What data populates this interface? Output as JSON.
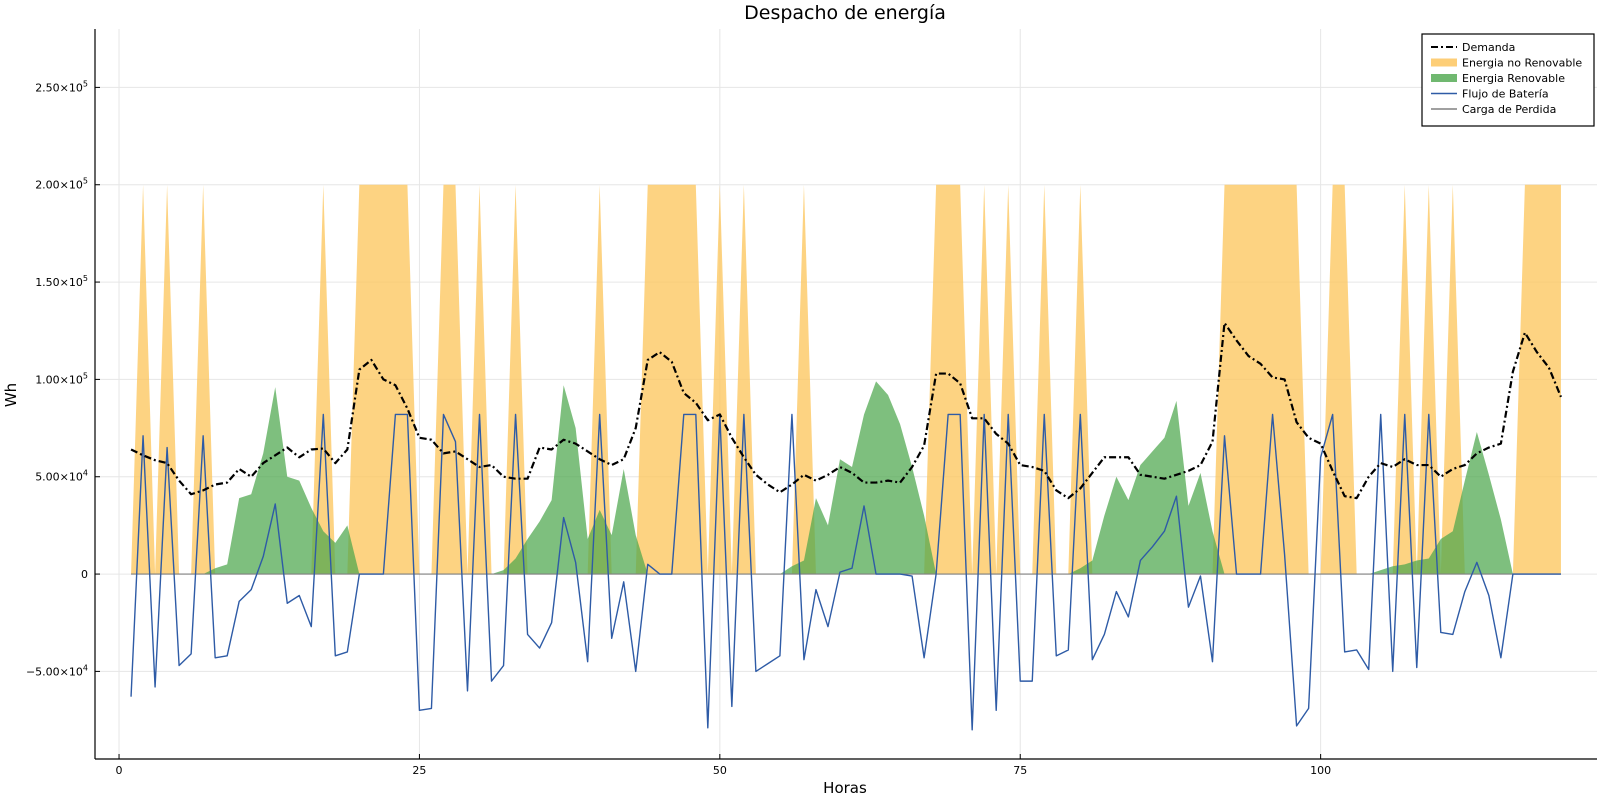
{
  "chart_data": {
    "type": "area",
    "title": "Despacho de energía",
    "xlabel": "Horas",
    "ylabel": "Wh",
    "xlim": [
      -2,
      123
    ],
    "ylim": [
      -95000,
      280000
    ],
    "x_ticks": [
      0,
      25,
      50,
      75,
      100
    ],
    "x_tick_labels": [
      "0",
      "25",
      "50",
      "75",
      "100"
    ],
    "y_ticks": [
      -50000,
      0,
      50000,
      100000,
      150000,
      200000,
      250000
    ],
    "y_tick_labels": [
      {
        "mant": "−5.00×10",
        "exp": "4"
      },
      {
        "mant": "0",
        "exp": ""
      },
      {
        "mant": "5.00×10",
        "exp": "4"
      },
      {
        "mant": "1.00×10",
        "exp": "5"
      },
      {
        "mant": "1.50×10",
        "exp": "5"
      },
      {
        "mant": "2.00×10",
        "exp": "5"
      },
      {
        "mant": "2.50×10",
        "exp": "5"
      }
    ],
    "grid": true,
    "legend_position": "top-right",
    "colors": {
      "demanda": "#000000",
      "no_renovable": "#FDC65F",
      "renovable": "#4CA64C",
      "bateria": "#2E5BA6",
      "perdida": "#808080",
      "overlap": "#7F8E1C"
    },
    "legend": [
      "Demanda",
      "Energia no Renovable",
      "Energia Renovable",
      "Flujo de Batería",
      "Carga de Perdida"
    ],
    "x": [
      1,
      2,
      3,
      4,
      5,
      6,
      7,
      8,
      9,
      10,
      11,
      12,
      13,
      14,
      15,
      16,
      17,
      18,
      19,
      20,
      21,
      22,
      23,
      24,
      25,
      26,
      27,
      28,
      29,
      30,
      31,
      32,
      33,
      34,
      35,
      36,
      37,
      38,
      39,
      40,
      41,
      42,
      43,
      44,
      45,
      46,
      47,
      48,
      49,
      50,
      51,
      52,
      53,
      54,
      55,
      56,
      57,
      58,
      59,
      60,
      61,
      62,
      63,
      64,
      65,
      66,
      67,
      68,
      69,
      70,
      71,
      72,
      73,
      74,
      75,
      76,
      77,
      78,
      79,
      80,
      81,
      82,
      83,
      84,
      85,
      86,
      87,
      88,
      89,
      90,
      91,
      92,
      93,
      94,
      95,
      96,
      97,
      98,
      99,
      100,
      101,
      102,
      103,
      104,
      105,
      106,
      107,
      108,
      109,
      110,
      111,
      112,
      113,
      114,
      115,
      116,
      117,
      118,
      119,
      120
    ],
    "series": [
      {
        "name": "Demanda",
        "values": [
          64000,
          61000,
          58500,
          57000,
          48000,
          41000,
          43000,
          46000,
          47000,
          54000,
          50000,
          57000,
          61000,
          65000,
          60000,
          64000,
          64500,
          57000,
          64000,
          105000,
          110000,
          100000,
          97000,
          85000,
          70000,
          69000,
          62000,
          63000,
          59000,
          55000,
          56000,
          50000,
          49000,
          49000,
          65000,
          64000,
          69000,
          67000,
          63000,
          59000,
          56000,
          59000,
          75000,
          110000,
          114000,
          109000,
          93000,
          88000,
          79000,
          82000,
          70000,
          60000,
          51000,
          46000,
          42000,
          46000,
          51000,
          48000,
          51000,
          55000,
          52000,
          47000,
          47000,
          48000,
          47000,
          55000,
          66000,
          103000,
          103000,
          98000,
          80000,
          80000,
          72000,
          67000,
          56000,
          55000,
          53000,
          43000,
          39000,
          44000,
          52000,
          60000,
          60000,
          60000,
          51000,
          50000,
          49000,
          51000,
          53000,
          56000,
          68000,
          129000,
          120000,
          112000,
          108000,
          101000,
          100000,
          78000,
          70000,
          67000,
          53000,
          40000,
          39000,
          50000,
          57000,
          55000,
          59000,
          56000,
          56000,
          50000,
          54000,
          56000,
          62000,
          65000,
          67000,
          104000,
          124000,
          114000,
          106000,
          91000
        ]
      },
      {
        "name": "Energia no Renovable",
        "values": [
          0,
          200000,
          0,
          200000,
          0,
          0,
          200000,
          0,
          0,
          0,
          0,
          0,
          0,
          0,
          0,
          0,
          200000,
          0,
          0,
          200000,
          200000,
          200000,
          200000,
          200000,
          0,
          0,
          200000,
          200000,
          0,
          200000,
          0,
          0,
          200000,
          0,
          0,
          0,
          0,
          0,
          0,
          200000,
          0,
          0,
          0,
          200000,
          200000,
          200000,
          200000,
          200000,
          0,
          200000,
          0,
          200000,
          0,
          0,
          0,
          0,
          200000,
          0,
          0,
          0,
          0,
          0,
          0,
          0,
          0,
          0,
          0,
          200000,
          200000,
          200000,
          0,
          200000,
          0,
          200000,
          0,
          0,
          200000,
          0,
          0,
          200000,
          0,
          0,
          0,
          0,
          0,
          0,
          0,
          0,
          0,
          0,
          0,
          200000,
          200000,
          200000,
          200000,
          200000,
          200000,
          200000,
          0,
          0,
          200000,
          200000,
          0,
          0,
          0,
          0,
          200000,
          0,
          200000,
          0,
          200000,
          0,
          0,
          0,
          0,
          0,
          200000,
          200000,
          200000,
          200000
        ]
      },
      {
        "name": "Energia Renovable",
        "values": [
          0,
          0,
          0,
          0,
          0,
          0,
          0,
          3000,
          5000,
          39000,
          41000,
          62000,
          96000,
          50000,
          48000,
          34000,
          22000,
          16000,
          25000,
          0,
          0,
          0,
          0,
          0,
          0,
          0,
          0,
          0,
          0,
          0,
          0,
          2000,
          8000,
          18000,
          27000,
          38000,
          97000,
          75000,
          18000,
          33000,
          20000,
          54000,
          20000,
          0,
          0,
          0,
          0,
          0,
          0,
          0,
          0,
          0,
          0,
          0,
          0,
          4000,
          7000,
          39000,
          25000,
          59000,
          55000,
          82000,
          99000,
          92000,
          77000,
          55000,
          30000,
          0,
          0,
          0,
          0,
          0,
          0,
          0,
          0,
          0,
          0,
          0,
          0,
          3000,
          7000,
          30000,
          50000,
          38000,
          56000,
          63000,
          70000,
          89000,
          35000,
          52000,
          22000,
          0,
          0,
          0,
          0,
          0,
          0,
          0,
          0,
          0,
          0,
          0,
          0,
          0,
          2000,
          4000,
          5000,
          7000,
          8000,
          18000,
          22000,
          48000,
          73000,
          51000,
          28000,
          0,
          0,
          0,
          0,
          0
        ]
      },
      {
        "name": "Flujo de Batería",
        "values": [
          -63000,
          71000,
          -58000,
          65000,
          -47000,
          -41000,
          71000,
          -43000,
          -42000,
          -14000,
          -8000,
          9000,
          36000,
          -15000,
          -11000,
          -27000,
          82000,
          -42000,
          -40000,
          0,
          0,
          0,
          82000,
          82000,
          -70000,
          -69000,
          82000,
          68000,
          -60000,
          82000,
          -55000,
          -47000,
          82000,
          -31000,
          -38000,
          -25000,
          29000,
          6000,
          -45000,
          82000,
          -33000,
          -4000,
          -50000,
          5000,
          0,
          0,
          82000,
          82000,
          -79000,
          82000,
          -68000,
          82000,
          -50000,
          -46000,
          -42000,
          82000,
          -44000,
          -8000,
          -27000,
          1000,
          3000,
          35000,
          0,
          0,
          0,
          -1000,
          -43000,
          0,
          82000,
          82000,
          -80000,
          82000,
          -70000,
          82000,
          -55000,
          -55000,
          82000,
          -42000,
          -39000,
          82000,
          -44000,
          -31000,
          -9000,
          -22000,
          7000,
          14000,
          22000,
          40000,
          -17000,
          -1000,
          -45000,
          71000,
          0,
          0,
          0,
          82000,
          10000,
          -78000,
          -69000,
          60000,
          82000,
          -40000,
          -39000,
          -49000,
          82000,
          -50000,
          82000,
          -48000,
          82000,
          -30000,
          -31000,
          -9000,
          6000,
          -11000,
          -43000,
          0,
          0,
          0,
          0,
          0
        ]
      },
      {
        "name": "Carga de Perdida",
        "values": [
          0,
          0,
          0,
          0,
          0,
          0,
          0,
          0,
          0,
          0,
          0,
          0,
          0,
          0,
          0,
          0,
          0,
          0,
          0,
          0,
          0,
          0,
          0,
          0,
          0,
          0,
          0,
          0,
          0,
          0,
          0,
          0,
          0,
          0,
          0,
          0,
          0,
          0,
          0,
          0,
          0,
          0,
          0,
          0,
          0,
          0,
          0,
          0,
          0,
          0,
          0,
          0,
          0,
          0,
          0,
          0,
          0,
          0,
          0,
          0,
          0,
          0,
          0,
          0,
          0,
          0,
          0,
          0,
          0,
          0,
          0,
          0,
          0,
          0,
          0,
          0,
          0,
          0,
          0,
          0,
          0,
          0,
          0,
          0,
          0,
          0,
          0,
          0,
          0,
          0,
          0,
          0,
          0,
          0,
          0,
          0,
          0,
          0,
          0,
          0,
          0,
          0,
          0,
          0,
          0,
          0,
          0,
          0,
          0,
          0,
          0,
          0,
          0,
          0,
          0,
          0,
          0,
          0,
          0,
          0
        ]
      }
    ]
  }
}
